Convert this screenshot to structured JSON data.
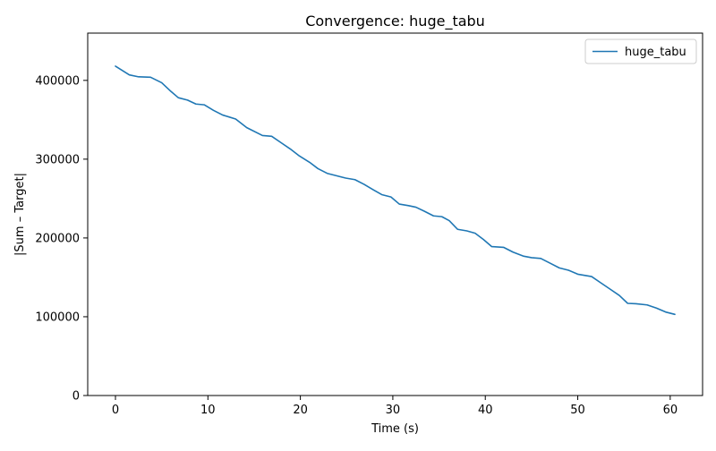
{
  "chart_data": {
    "type": "line",
    "title": "Convergence: huge_tabu",
    "xlabel": "Time (s)",
    "ylabel": "|Sum – Target|",
    "xlim": [
      -3.0,
      63.5
    ],
    "ylim": [
      0,
      460000
    ],
    "xticks": [
      0,
      10,
      20,
      30,
      40,
      50,
      60
    ],
    "yticks": [
      0,
      100000,
      200000,
      300000,
      400000
    ],
    "legend_position": "top-right",
    "series": [
      {
        "name": "huge_tabu",
        "color": "#1f77b4",
        "x": [
          0,
          1.5,
          2.5,
          3.8,
          5.0,
          6.0,
          6.8,
          7.8,
          8.7,
          9.6,
          10.6,
          11.6,
          13.0,
          14.2,
          15.9,
          16.9,
          17.9,
          18.9,
          19.9,
          21.0,
          21.9,
          22.9,
          23.9,
          24.9,
          25.9,
          26.9,
          27.9,
          28.8,
          29.8,
          30.7,
          31.7,
          32.5,
          33.4,
          34.4,
          35.3,
          36.1,
          37.0,
          38.0,
          38.9,
          39.8,
          40.7,
          42.0,
          43.0,
          44.1,
          45.0,
          46.0,
          47.0,
          48.0,
          49.0,
          50.0,
          51.5,
          52.5,
          53.5,
          54.5,
          55.4,
          56.3,
          57.5,
          58.5,
          59.5,
          60.5
        ],
        "y": [
          418000,
          407000,
          404500,
          404000,
          397000,
          386000,
          378000,
          375000,
          370000,
          369000,
          362000,
          356000,
          351000,
          340000,
          330000,
          329000,
          321000,
          313000,
          304000,
          296000,
          288000,
          282000,
          279000,
          276000,
          274000,
          268000,
          261000,
          255000,
          252000,
          243000,
          241000,
          239000,
          234000,
          228000,
          227000,
          222000,
          211000,
          209000,
          206000,
          198000,
          189000,
          188000,
          182000,
          177000,
          175000,
          174000,
          168000,
          162000,
          159000,
          154000,
          151000,
          143000,
          135000,
          127000,
          117000,
          116500,
          115000,
          111000,
          106000,
          103000
        ]
      }
    ]
  }
}
